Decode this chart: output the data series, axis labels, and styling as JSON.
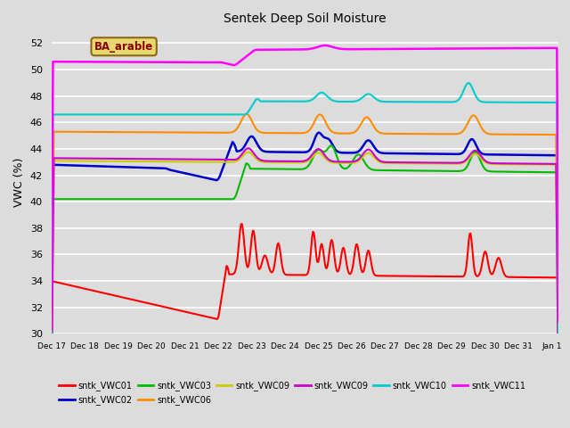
{
  "title": "Sentek Deep Soil Moisture",
  "ylabel": "VWC (%)",
  "ylim": [
    30,
    53
  ],
  "annotation_text": "BA_arable",
  "annotation_color": "#8B0000",
  "annotation_bg": "#E8D870",
  "annotation_edge": "#8B6914",
  "x_start": 17,
  "x_end": 32.2,
  "x_ticks": [
    17,
    18,
    19,
    20,
    21,
    22,
    23,
    24,
    25,
    26,
    27,
    28,
    29,
    30,
    31,
    32
  ],
  "x_tick_labels": [
    "Dec 17",
    "Dec 18",
    "Dec 19",
    "Dec 20",
    "Dec 21",
    "Dec 22",
    "Dec 23",
    "Dec 24",
    "Dec 25",
    "Dec 26",
    "Dec 27",
    "Dec 28",
    "Dec 29",
    "Dec 30",
    "Dec 31",
    "Jan 1"
  ],
  "plot_bg_color": "#dcdcdc",
  "grid_color": "#ffffff",
  "series": [
    {
      "label": "sntk_VWC01",
      "color": "#FF0000",
      "linewidth": 1.5
    },
    {
      "label": "sntk_VWC02",
      "color": "#0000CD",
      "linewidth": 1.8
    },
    {
      "label": "sntk_VWC03",
      "color": "#00BB00",
      "linewidth": 1.5
    },
    {
      "label": "sntk_VWC06",
      "color": "#FF8C00",
      "linewidth": 1.5
    },
    {
      "label": "sntk_VWC09",
      "color": "#CCCC00",
      "linewidth": 1.5
    },
    {
      "label": "sntk_VWC09",
      "color": "#CC00CC",
      "linewidth": 1.5
    },
    {
      "label": "sntk_VWC10",
      "color": "#00CCCC",
      "linewidth": 1.5
    },
    {
      "label": "sntk_VWC11",
      "color": "#FF00FF",
      "linewidth": 1.8
    }
  ]
}
